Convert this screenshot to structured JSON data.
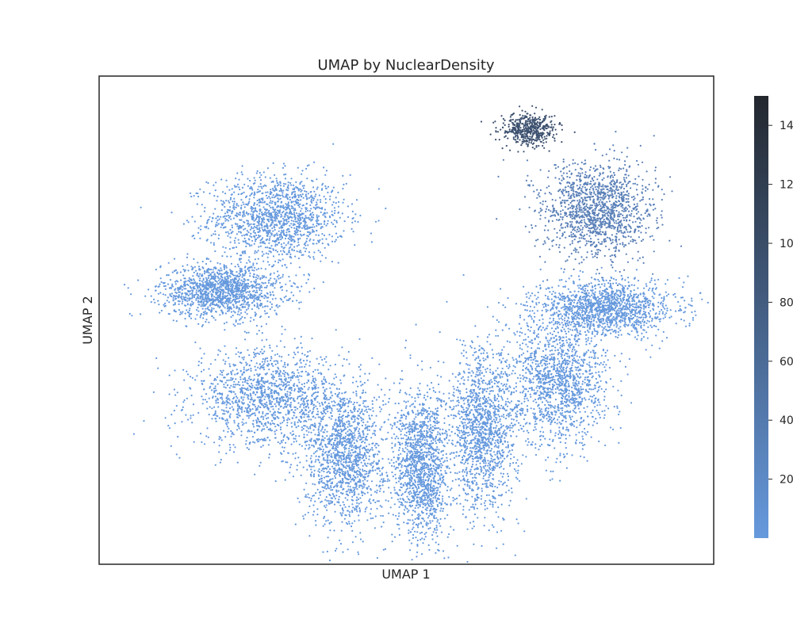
{
  "chart_data": {
    "type": "scatter",
    "title": "UMAP by NuclearDensity",
    "xlabel": "UMAP 1",
    "ylabel": "UMAP 2",
    "grid": false,
    "x_ticks_visible": false,
    "y_ticks_visible": false,
    "colorbar": {
      "min": 0,
      "max": 150,
      "ticks": [
        20,
        40,
        60,
        80,
        100,
        120,
        140
      ],
      "tick_labels": [
        "20",
        "40",
        "60",
        "80",
        "100",
        "120",
        "140"
      ],
      "color_low": "#6699dd",
      "color_high": "#23272e"
    },
    "point_color": "#6699dd",
    "clusters": [
      {
        "center": [
          -0.42,
          0.42
        ],
        "spread": [
          0.2,
          0.16
        ],
        "density": "low"
      },
      {
        "center": [
          -0.6,
          0.12
        ],
        "spread": [
          0.18,
          0.1
        ],
        "density": "low"
      },
      {
        "center": [
          -0.45,
          -0.32
        ],
        "spread": [
          0.22,
          0.18
        ],
        "density": "low"
      },
      {
        "center": [
          -0.2,
          -0.55
        ],
        "spread": [
          0.12,
          0.26
        ],
        "density": "low"
      },
      {
        "center": [
          0.05,
          -0.6
        ],
        "spread": [
          0.08,
          0.28
        ],
        "density": "low"
      },
      {
        "center": [
          0.25,
          -0.45
        ],
        "spread": [
          0.1,
          0.3
        ],
        "density": "low"
      },
      {
        "center": [
          0.5,
          -0.25
        ],
        "spread": [
          0.14,
          0.24
        ],
        "density": "low"
      },
      {
        "center": [
          0.65,
          0.05
        ],
        "spread": [
          0.2,
          0.1
        ],
        "density": "low"
      },
      {
        "center": [
          0.62,
          0.45
        ],
        "spread": [
          0.16,
          0.18
        ],
        "density": "medium"
      },
      {
        "center": [
          0.4,
          0.78
        ],
        "spread": [
          0.08,
          0.06
        ],
        "density": "high"
      }
    ]
  }
}
